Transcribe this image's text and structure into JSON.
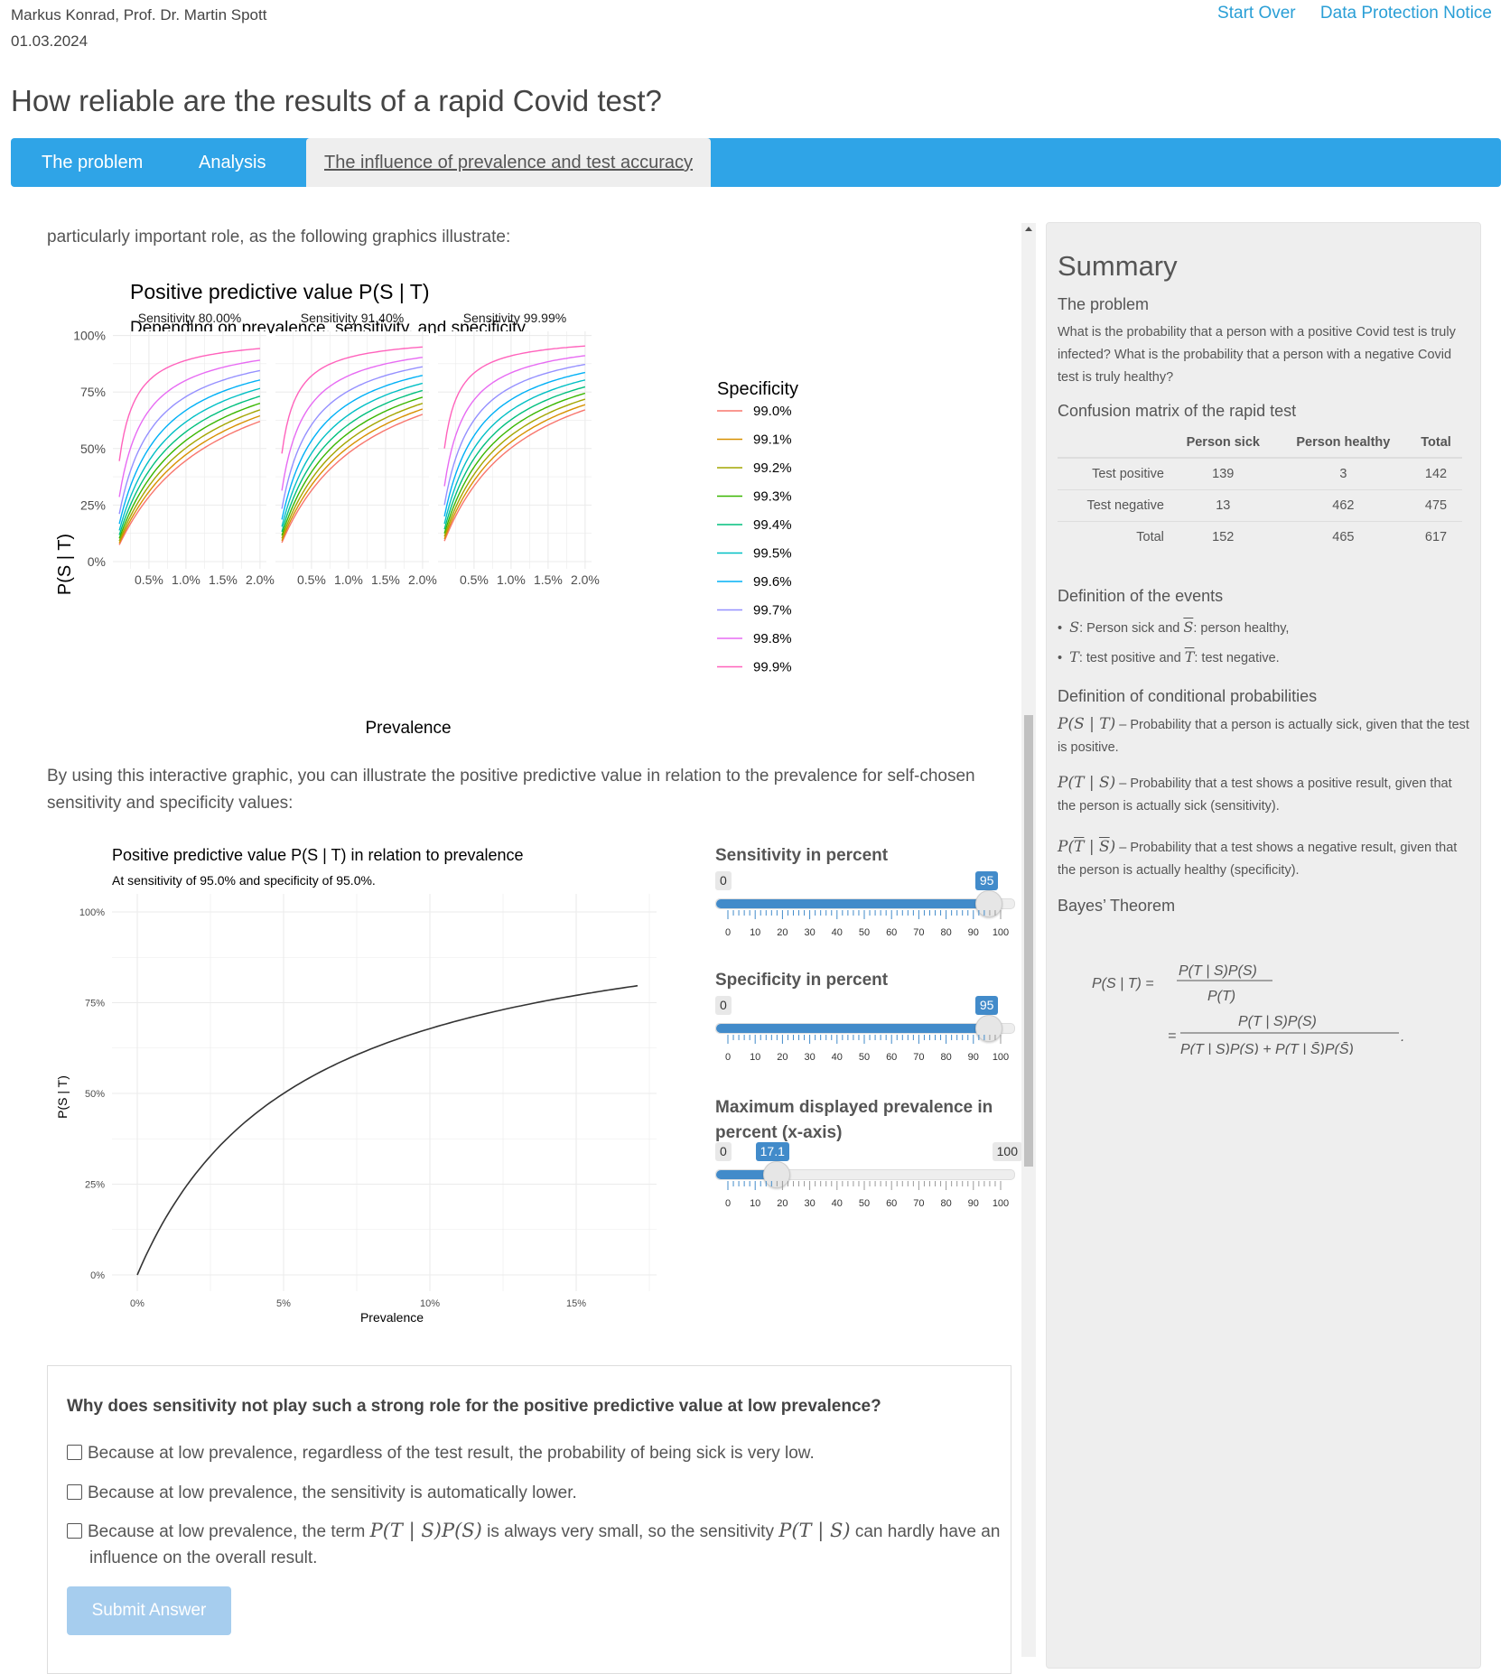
{
  "header": {
    "authors": "Markus Konrad, Prof. Dr. Martin Spott",
    "date": "01.03.2024",
    "start_over": "Start Over",
    "data_protection": "Data Protection Notice",
    "title": "How reliable are the results of a rapid Covid test?"
  },
  "nav": {
    "tabs": [
      "The problem",
      "Analysis",
      "The influence of prevalence and test accuracy"
    ],
    "active": 2
  },
  "main": {
    "intro_text": "particularly important role, as the following graphics illustrate:",
    "interactive_text": "By using this interactive graphic, you can illustrate the positive predictive value in relation to the prevalence for self-chosen sensitivity and specificity values:"
  },
  "chart_data": [
    {
      "type": "line",
      "title": "Positive predictive value P(S | T)",
      "subtitle": "Depending on prevalence, sensitivity, and specificity.",
      "xlabel": "Prevalence",
      "ylabel": "P(S | T)",
      "xlim": [
        0.001,
        0.02
      ],
      "ylim": [
        0,
        1
      ],
      "x_ticks": [
        "0.5%",
        "1.0%",
        "1.5%",
        "2.0%"
      ],
      "y_ticks": [
        "0%",
        "25%",
        "50%",
        "75%",
        "100%"
      ],
      "facets": [
        "Sensitivity 80.00%",
        "Sensitivity 91.40%",
        "Sensitivity 99.99%"
      ],
      "facet_sensitivity": [
        0.8,
        0.914,
        0.9999
      ],
      "legend_title": "Specificity",
      "legend_position": "right",
      "series": [
        {
          "name": "99.0%",
          "specificity": 0.99,
          "color": "#F8766D"
        },
        {
          "name": "99.1%",
          "specificity": 0.991,
          "color": "#D89000"
        },
        {
          "name": "99.2%",
          "specificity": 0.992,
          "color": "#A3A500"
        },
        {
          "name": "99.3%",
          "specificity": 0.993,
          "color": "#39B600"
        },
        {
          "name": "99.4%",
          "specificity": 0.994,
          "color": "#00BF7D"
        },
        {
          "name": "99.5%",
          "specificity": 0.995,
          "color": "#00BFC4"
        },
        {
          "name": "99.6%",
          "specificity": 0.996,
          "color": "#00B0F6"
        },
        {
          "name": "99.7%",
          "specificity": 0.997,
          "color": "#9590FF"
        },
        {
          "name": "99.8%",
          "specificity": 0.998,
          "color": "#E76BF3"
        },
        {
          "name": "99.9%",
          "specificity": 0.999,
          "color": "#FF62BC"
        }
      ]
    },
    {
      "type": "line",
      "title": "Positive predictive value P(S | T) in relation to prevalence",
      "subtitle": "At sensitivity of 95.0% and specificity of 95.0%.",
      "xlabel": "Prevalence",
      "ylabel": "P(S | T)",
      "xlim": [
        0,
        0.175
      ],
      "ylim": [
        0,
        1
      ],
      "x_ticks": [
        "0%",
        "5%",
        "10%",
        "15%"
      ],
      "y_ticks": [
        "0%",
        "25%",
        "50%",
        "75%",
        "100%"
      ],
      "sensitivity": 0.95,
      "specificity": 0.95,
      "x_max": 0.171,
      "color": "#333333"
    }
  ],
  "sliders": [
    {
      "label": "Sensitivity in percent",
      "min": 0,
      "max": 100,
      "value": 95,
      "value_label": "95"
    },
    {
      "label": "Specificity in percent",
      "min": 0,
      "max": 100,
      "value": 95,
      "value_label": "95"
    },
    {
      "label": "Maximum displayed prevalence in percent (x-axis)",
      "min": 0,
      "max": 100,
      "value": 17.1,
      "value_label": "17.1"
    }
  ],
  "slider_ticks": [
    "0",
    "10",
    "20",
    "30",
    "40",
    "50",
    "60",
    "70",
    "80",
    "90",
    "100"
  ],
  "slider_min_label": "0",
  "slider_max_label": "100",
  "question": {
    "text": "Why does sensitivity not play such a strong role for the positive predictive value at low prevalence?",
    "option1": "Because at low prevalence, regardless of the test result, the probability of being sick is very low.",
    "option2": "Because at low prevalence, the sensitivity is automatically lower.",
    "option3_a": "Because at low prevalence, the term ",
    "option3_m1": "P(T | S)P(S)",
    "option3_b": " is always very small, so the sensitivity ",
    "option3_m2": "P(T | S)",
    "option3_c": " can hardly have an influence on the overall result.",
    "submit": "Submit Answer"
  },
  "summary": {
    "title": "Summary",
    "problem_heading": "The problem",
    "problem_text": "What is the probability that a person with a positive Covid test is truly infected? What is the probability that a person with a negative Covid test is truly healthy?",
    "confusion_heading": "Confusion matrix of the rapid test",
    "table_headers": [
      "",
      "Person sick",
      "Person healthy",
      "Total"
    ],
    "table_rows": [
      [
        "Test positive",
        "139",
        "3",
        "142"
      ],
      [
        "Test negative",
        "13",
        "462",
        "475"
      ],
      [
        "Total",
        "152",
        "465",
        "617"
      ]
    ],
    "events_heading": "Definition of the events",
    "event1_text1": ": Person sick and ",
    "event1_text2": ": person healthy,",
    "event2_text1": ": test positive and ",
    "event2_text2": ": test negative.",
    "cond_heading": "Definition of conditional probabilities",
    "cond1_math": "P(S | T)",
    "cond1_text": " – Probability that a person is actually sick, given that the test is positive.",
    "cond2_math": "P(T | S)",
    "cond2_text": " – Probability that a test shows a positive result, given that the person is actually sick (sensitivity).",
    "cond3_text": " – Probability that a test shows a negative result, given that the person is actually healthy (specificity).",
    "bayes_heading": "Bayes’ Theorem"
  }
}
